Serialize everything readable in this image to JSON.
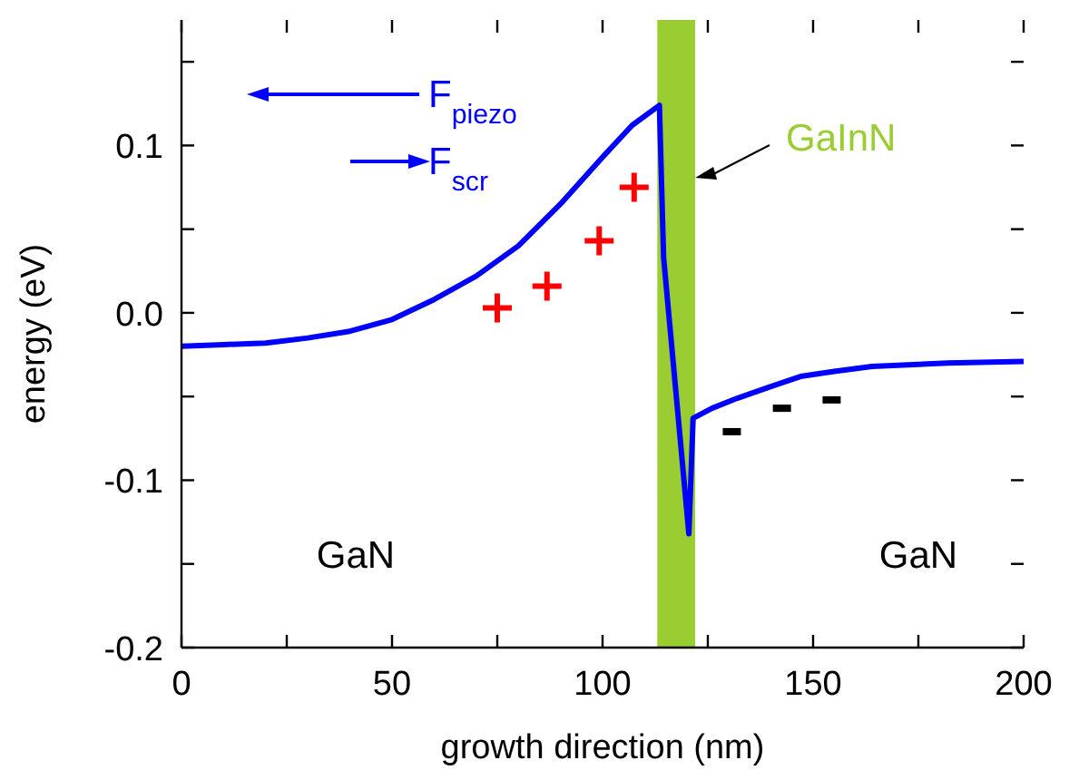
{
  "chart_data": {
    "type": "line",
    "xlabel": "growth direction (nm)",
    "ylabel": "energy (eV)",
    "xlim": [
      0,
      200
    ],
    "ylim": [
      -0.2,
      0.175
    ],
    "xticks": [
      0,
      {
        "value": 25,
        "label": null
      },
      50,
      {
        "value": 75,
        "label": null
      },
      100,
      {
        "value": 125,
        "label": null
      },
      150,
      {
        "value": 175,
        "label": null
      },
      200
    ],
    "yticks": [
      {
        "value": -0.2,
        "label": "-0.2"
      },
      {
        "value": -0.15,
        "label": null
      },
      {
        "value": -0.1,
        "label": "-0.1"
      },
      {
        "value": -0.05,
        "label": null
      },
      {
        "value": 0,
        "label": "0.0"
      },
      {
        "value": 0.05,
        "label": null
      },
      {
        "value": 0.1,
        "label": "0.1"
      },
      {
        "value": 0.15,
        "label": null
      }
    ],
    "grid": false,
    "legend": false,
    "series": [
      {
        "color": "#0000ff",
        "marker": "none",
        "line_style": "solid",
        "x": [
          0,
          10,
          20,
          30,
          40,
          50,
          60,
          70,
          80,
          90,
          100,
          107,
          113.5,
          114.5,
          120.5,
          121.5,
          126,
          132,
          140,
          147,
          155,
          164,
          182,
          200
        ],
        "values": [
          -0.02,
          -0.019,
          -0.018,
          -0.015,
          -0.011,
          -0.004,
          0.008,
          0.022,
          0.04,
          0.065,
          0.093,
          0.112,
          0.124,
          0.033,
          -0.132,
          -0.063,
          -0.057,
          -0.051,
          -0.044,
          -0.038,
          -0.035,
          -0.032,
          -0.03,
          -0.029
        ]
      },
      {
        "type": "scatter",
        "color": "#ff0000",
        "marker": "cross",
        "x": [
          75,
          86.8,
          99.2,
          107.5
        ],
        "values": [
          0.003,
          0.016,
          0.043,
          0.075
        ]
      },
      {
        "type": "scatter",
        "color": "#000000",
        "x": [
          130.7,
          142.6,
          154.4
        ],
        "values": [
          -0.071,
          -0.057,
          -0.052
        ]
      }
    ],
    "bands": [
      {
        "axis": "x",
        "from": 113,
        "to": 122,
        "label": "GaInN",
        "color": "#9acd32"
      }
    ],
    "annotations": [
      "F$_{piezo}$",
      "F$_{scr}$",
      "GaN",
      "GaN"
    ]
  }
}
